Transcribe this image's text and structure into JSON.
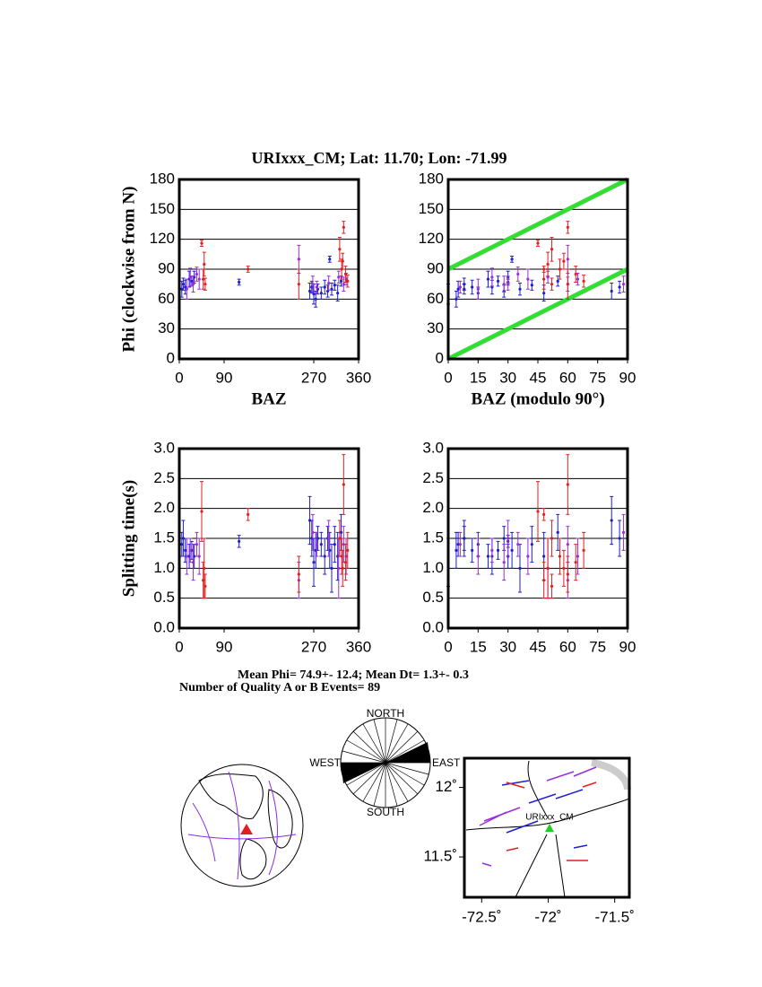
{
  "title": "URIxxx_CM; Lat:  11.70;  Lon:  -71.99",
  "summary": [
    "Mean Phi= 74.9+- 12.4; Mean Dt=  1.3+-  0.3",
    "Number of Quality A or B Events= 89"
  ],
  "rose_labels": {
    "north": "NORTH",
    "south": "SOUTH",
    "east": "EAST",
    "west": "WEST"
  },
  "chart_data": [
    {
      "type": "scatter",
      "ylabel": "Phi (clockwise from N)",
      "xlabel": "BAZ",
      "xlim": [
        0,
        360
      ],
      "xticks": [
        0,
        90,
        270,
        360
      ],
      "ylim": [
        0,
        180
      ],
      "yticks": [
        0,
        30,
        60,
        90,
        120,
        150,
        180
      ],
      "grid": true,
      "series": [
        {
          "color": "#1f1fd0",
          "x": [
            5,
            8,
            12,
            20,
            25,
            30,
            120,
            262,
            266,
            270,
            274,
            278,
            285,
            292,
            298,
            302,
            306,
            312,
            318,
            325
          ],
          "values": [
            70,
            75,
            72,
            80,
            78,
            82,
            77,
            68,
            72,
            65,
            60,
            70,
            66,
            72,
            68,
            100,
            70,
            74,
            66,
            78
          ],
          "errors": [
            8,
            6,
            7,
            8,
            5,
            6,
            3,
            8,
            6,
            10,
            8,
            5,
            6,
            7,
            6,
            3,
            6,
            5,
            8,
            5
          ]
        },
        {
          "color": "#9a2fd8",
          "x": [
            15,
            22,
            28,
            35,
            40,
            240,
            268,
            276,
            300,
            320,
            330,
            335
          ],
          "values": [
            70,
            82,
            75,
            85,
            80,
            100,
            75,
            72,
            76,
            82,
            75,
            80
          ],
          "errors": [
            10,
            9,
            8,
            7,
            10,
            14,
            8,
            6,
            7,
            6,
            7,
            6
          ]
        },
        {
          "color": "#e02020",
          "x": [
            45,
            48,
            50,
            52,
            138,
            240,
            322,
            326,
            330,
            334,
            338,
            328
          ],
          "values": [
            116,
            80,
            95,
            75,
            90,
            75,
            110,
            90,
            132,
            85,
            78,
            98
          ],
          "errors": [
            3,
            10,
            12,
            6,
            3,
            15,
            12,
            10,
            6,
            8,
            6,
            8
          ]
        }
      ]
    },
    {
      "type": "scatter",
      "xlabel": "BAZ (modulo 90°)",
      "xlim": [
        0,
        90
      ],
      "xticks": [
        0,
        15,
        30,
        45,
        60,
        75,
        90
      ],
      "ylim": [
        0,
        180
      ],
      "yticks": [
        0,
        30,
        60,
        90,
        120,
        150,
        180
      ],
      "grid": true,
      "reference_lines": {
        "color": "#33dd33",
        "lines": [
          {
            "x": [
              0,
              90
            ],
            "values": [
              0,
              90
            ]
          },
          {
            "x": [
              0,
              90
            ],
            "values": [
              90,
              180
            ]
          }
        ]
      },
      "series": [
        {
          "color": "#1f1fd0",
          "x": [
            5,
            8,
            12,
            20,
            25,
            30,
            30,
            82,
            86,
            0,
            4,
            8,
            15,
            22,
            28,
            32,
            36,
            42,
            48,
            55
          ],
          "values": [
            70,
            75,
            72,
            80,
            78,
            82,
            77,
            68,
            72,
            65,
            60,
            70,
            66,
            72,
            68,
            100,
            70,
            74,
            66,
            78
          ],
          "errors": [
            8,
            6,
            7,
            8,
            5,
            6,
            3,
            8,
            6,
            10,
            8,
            5,
            6,
            7,
            6,
            3,
            6,
            5,
            8,
            5
          ]
        },
        {
          "color": "#9a2fd8",
          "x": [
            15,
            22,
            28,
            35,
            40,
            60,
            88,
            6,
            30,
            50,
            60,
            65
          ],
          "values": [
            70,
            82,
            75,
            85,
            80,
            100,
            75,
            72,
            76,
            82,
            75,
            80
          ],
          "errors": [
            10,
            9,
            8,
            7,
            10,
            14,
            8,
            6,
            7,
            6,
            7,
            6
          ]
        },
        {
          "color": "#e02020",
          "x": [
            45,
            48,
            50,
            52,
            48,
            60,
            52,
            56,
            60,
            64,
            68,
            58
          ],
          "values": [
            116,
            80,
            95,
            75,
            90,
            75,
            110,
            90,
            132,
            85,
            78,
            98
          ],
          "errors": [
            3,
            10,
            12,
            6,
            3,
            15,
            12,
            10,
            6,
            8,
            6,
            8
          ]
        }
      ]
    },
    {
      "type": "scatter",
      "ylabel": "Splitting time(s)",
      "xlim": [
        0,
        360
      ],
      "xticks": [
        0,
        90,
        270,
        360
      ],
      "ylim": [
        0,
        3
      ],
      "yticks": [
        {
          "value": 0,
          "label": "0.0"
        },
        0.5,
        {
          "value": 1,
          "label": "1.0"
        },
        1.5,
        {
          "value": 2,
          "label": "2.0"
        },
        2.5,
        {
          "value": 3,
          "label": "3.0"
        }
      ],
      "grid": true,
      "series": [
        {
          "color": "#1f1fd0",
          "x": [
            5,
            8,
            12,
            20,
            25,
            30,
            120,
            262,
            266,
            270,
            274,
            278,
            285,
            292,
            298,
            302,
            306,
            312,
            318,
            325
          ],
          "values": [
            1.4,
            1.5,
            1.3,
            1.2,
            1.3,
            1.2,
            1.45,
            1.8,
            1.5,
            1.1,
            1.3,
            1.5,
            1.4,
            1.2,
            1.5,
            1.3,
            1.0,
            1.4,
            1.2,
            1.6
          ],
          "errors": [
            0.2,
            0.3,
            0.2,
            0.2,
            0.15,
            0.2,
            0.1,
            0.4,
            0.3,
            0.4,
            0.3,
            0.2,
            0.2,
            0.3,
            0.2,
            0.3,
            0.4,
            0.3,
            0.4,
            0.3
          ]
        },
        {
          "color": "#9a2fd8",
          "x": [
            15,
            22,
            28,
            35,
            40,
            240,
            268,
            276,
            300,
            320,
            330,
            335
          ],
          "values": [
            1.2,
            1.3,
            1.1,
            1.4,
            1.2,
            0.8,
            1.6,
            1.4,
            1.5,
            1.0,
            1.4,
            1.2
          ],
          "errors": [
            0.3,
            0.2,
            0.3,
            0.2,
            0.3,
            0.3,
            0.3,
            0.2,
            0.3,
            0.5,
            0.3,
            0.3
          ]
        },
        {
          "color": "#e02020",
          "x": [
            45,
            48,
            50,
            52,
            138,
            240,
            322,
            326,
            330,
            334,
            338,
            328
          ],
          "values": [
            1.95,
            0.8,
            1.0,
            0.7,
            1.9,
            0.9,
            1.5,
            1.2,
            2.4,
            1.1,
            1.3,
            1.0
          ],
          "errors": [
            0.5,
            0.3,
            0.5,
            0.2,
            0.1,
            0.3,
            0.3,
            0.3,
            0.5,
            0.3,
            0.3,
            0.3
          ]
        }
      ]
    },
    {
      "type": "scatter",
      "xlim": [
        0,
        90
      ],
      "xticks": [
        0,
        15,
        30,
        45,
        60,
        75,
        90
      ],
      "ylim": [
        0,
        3
      ],
      "yticks": [
        {
          "value": 0,
          "label": "0.0"
        },
        0.5,
        {
          "value": 1,
          "label": "1.0"
        },
        1.5,
        {
          "value": 2,
          "label": "2.0"
        },
        2.5,
        {
          "value": 3,
          "label": "3.0"
        }
      ],
      "grid": true,
      "series": [
        {
          "color": "#1f1fd0",
          "x": [
            5,
            8,
            12,
            20,
            25,
            30,
            30,
            82,
            86,
            0,
            4,
            8,
            15,
            22,
            28,
            32,
            36,
            42,
            48,
            55
          ],
          "values": [
            1.4,
            1.5,
            1.3,
            1.2,
            1.3,
            1.2,
            1.45,
            1.8,
            1.5,
            1.1,
            1.3,
            1.5,
            1.4,
            1.2,
            1.5,
            1.3,
            1.0,
            1.4,
            1.2,
            1.6
          ],
          "errors": [
            0.2,
            0.3,
            0.2,
            0.2,
            0.15,
            0.2,
            0.1,
            0.4,
            0.3,
            0.4,
            0.3,
            0.2,
            0.2,
            0.3,
            0.2,
            0.3,
            0.4,
            0.3,
            0.4,
            0.3
          ]
        },
        {
          "color": "#9a2fd8",
          "x": [
            15,
            22,
            28,
            35,
            40,
            60,
            88,
            6,
            30,
            50,
            60,
            65
          ],
          "values": [
            1.2,
            1.3,
            1.1,
            1.4,
            1.2,
            0.8,
            1.6,
            1.4,
            1.5,
            1.0,
            1.4,
            1.2
          ],
          "errors": [
            0.3,
            0.2,
            0.3,
            0.2,
            0.3,
            0.3,
            0.3,
            0.2,
            0.3,
            0.5,
            0.3,
            0.3
          ]
        },
        {
          "color": "#e02020",
          "x": [
            45,
            48,
            50,
            52,
            48,
            60,
            52,
            56,
            60,
            64,
            68,
            58
          ],
          "values": [
            1.95,
            0.8,
            1.0,
            0.7,
            1.9,
            0.9,
            1.5,
            1.2,
            2.4,
            1.1,
            1.3,
            1.0
          ],
          "errors": [
            0.5,
            0.3,
            0.5,
            0.2,
            0.1,
            0.3,
            0.3,
            0.3,
            0.5,
            0.3,
            0.3,
            0.3
          ]
        }
      ]
    },
    {
      "type": "map",
      "station": {
        "label": "URIxxx_CM",
        "lon": -71.99,
        "lat": 11.7
      },
      "station_color": "#22cc22",
      "xlim": [
        -72.63,
        -71.39
      ],
      "xticks": [
        {
          "value": -72.5,
          "label": "-72.5˚"
        },
        {
          "value": -72,
          "label": "-72˚"
        },
        {
          "value": -71.5,
          "label": "-71.5˚"
        }
      ],
      "ylim": [
        11.21,
        12.21
      ],
      "yticks": [
        {
          "value": 12,
          "label": "12˚"
        },
        {
          "value": 11.5,
          "label": "11.5˚"
        }
      ]
    }
  ]
}
